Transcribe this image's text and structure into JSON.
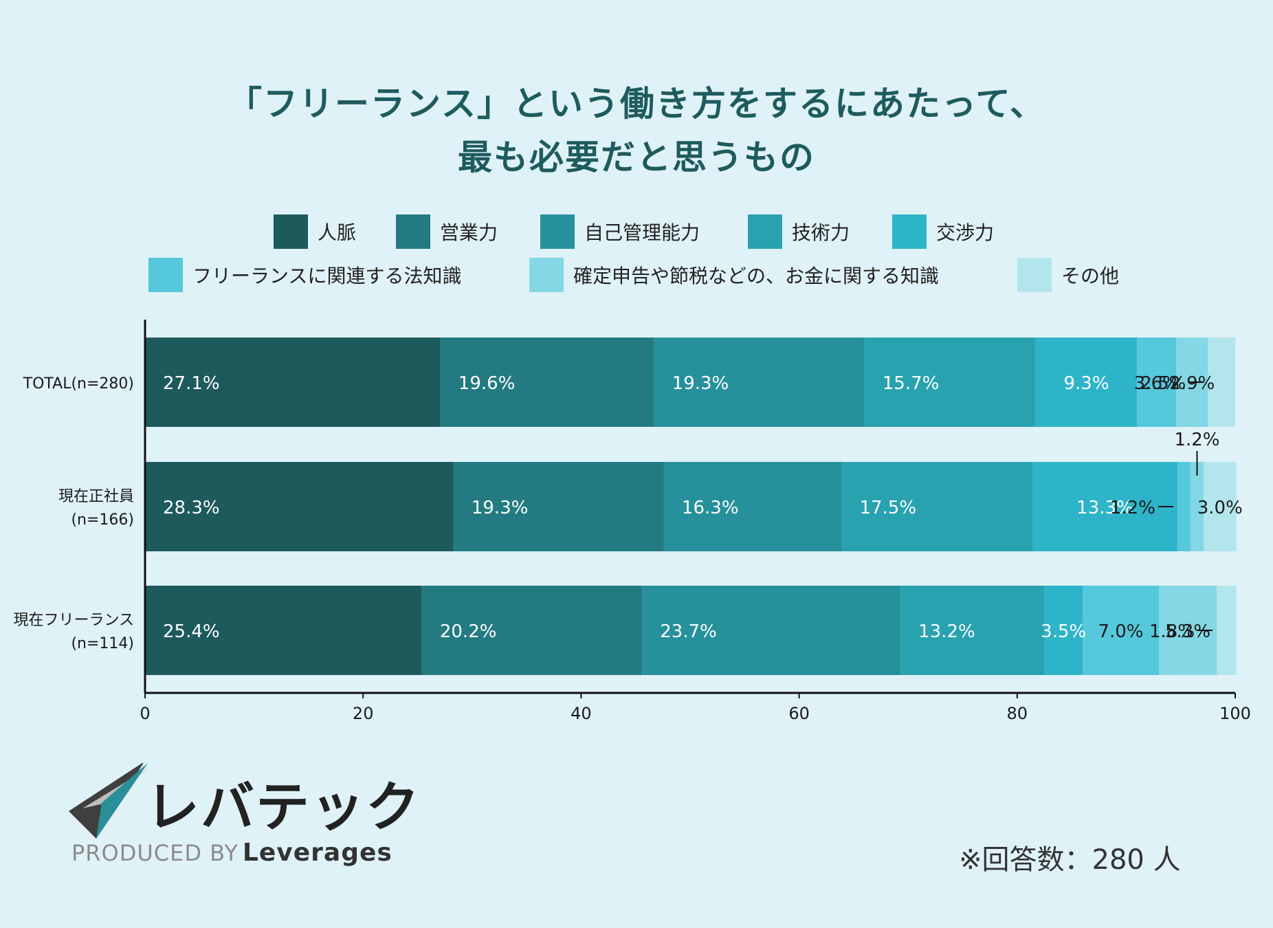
{
  "title": {
    "line1": "「フリーランス」という働き方をするにあたって、",
    "line2": "最も必要だと思うもの"
  },
  "chart_data": {
    "type": "bar",
    "orientation": "horizontal",
    "stacked": true,
    "title": "「フリーランス」という働き方をするにあたって、最も必要だと思うもの",
    "categories": [
      "TOTAL(n=280)",
      "現在正社員\n(n=166)",
      "現在フリーランス\n(n=114)"
    ],
    "series": [
      {
        "name": "人脈",
        "color": "#1d5a5c",
        "values": [
          27.1,
          28.3,
          25.4
        ]
      },
      {
        "name": "営業力",
        "color": "#237b81",
        "values": [
          19.6,
          19.3,
          20.2
        ]
      },
      {
        "name": "自己管理能力",
        "color": "#26909b",
        "values": [
          19.3,
          16.3,
          23.7
        ]
      },
      {
        "name": "技術力",
        "color": "#29a2b0",
        "values": [
          15.7,
          17.5,
          13.2
        ]
      },
      {
        "name": "交渉力",
        "color": "#2db4c9",
        "values": [
          9.3,
          13.3,
          3.5
        ]
      },
      {
        "name": "フリーランスに関連する法知識",
        "color": "#55c8dc",
        "values": [
          3.6,
          1.2,
          7.0
        ]
      },
      {
        "name": "確定申告や節税などの、お金に関する知識",
        "color": "#84d7e4",
        "values": [
          2.9,
          1.2,
          5.3
        ]
      },
      {
        "name": "その他",
        "color": "#b3e5ec",
        "values": [
          2.5,
          3.0,
          1.8
        ]
      }
    ],
    "value_suffix": "%",
    "xlim": [
      0,
      100
    ],
    "xticks": [
      0,
      20,
      40,
      60,
      80,
      100
    ],
    "legend_position": "top"
  },
  "logo": {
    "brand": "レバテック",
    "produced_by": "PRODUCED BY",
    "company": "Leverages"
  },
  "note": "※回答数：280 人"
}
